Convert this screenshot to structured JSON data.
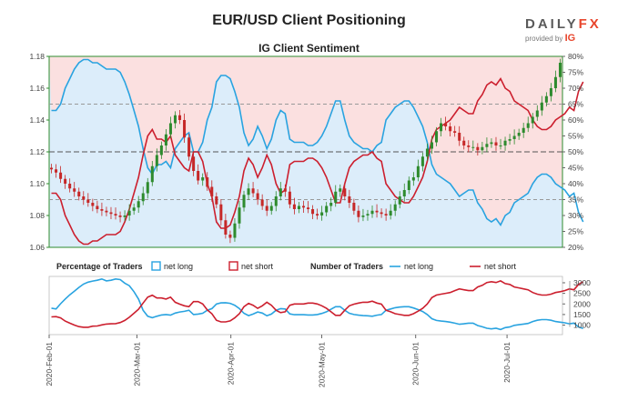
{
  "header": {
    "title": "EUR/USD Client Positioning",
    "subtitle": "IG Client Sentiment",
    "logo_main": "DAILYFX",
    "logo_sub_prefix": "provided by",
    "logo_sub_brand": "IG"
  },
  "colors": {
    "net_long": "#29a3e0",
    "net_short": "#cc1f2e",
    "bull_candle": "#2e8b2e",
    "bear_candle": "#c62828",
    "long_bg": "#dcedfa",
    "short_bg": "#fbe0e0"
  },
  "chart_data": [
    {
      "type": "candlestick",
      "title": "IG Client Sentiment",
      "price_axis": {
        "ticks": [
          "1.18",
          "1.16",
          "1.14",
          "1.12",
          "1.10",
          "1.08",
          "1.06"
        ],
        "ylim": [
          1.06,
          1.18
        ]
      },
      "percent_axis": {
        "ticks": [
          "80%",
          "75%",
          "70%",
          "65%",
          "60%",
          "55%",
          "50%",
          "45%",
          "40%",
          "35%",
          "30%",
          "25%",
          "20%"
        ],
        "ylim": [
          20,
          80
        ]
      },
      "price_close": [
        1.109,
        1.107,
        1.103,
        1.1,
        1.097,
        1.095,
        1.092,
        1.09,
        1.088,
        1.086,
        1.084,
        1.083,
        1.082,
        1.081,
        1.08,
        1.079,
        1.08,
        1.083,
        1.085,
        1.089,
        1.094,
        1.101,
        1.111,
        1.118,
        1.124,
        1.131,
        1.138,
        1.143,
        1.14,
        1.129,
        1.117,
        1.108,
        1.102,
        1.104,
        1.098,
        1.092,
        1.087,
        1.077,
        1.068,
        1.066,
        1.075,
        1.085,
        1.093,
        1.097,
        1.094,
        1.09,
        1.086,
        1.083,
        1.086,
        1.092,
        1.097,
        1.095,
        1.087,
        1.084,
        1.086,
        1.085,
        1.084,
        1.081,
        1.08,
        1.082,
        1.086,
        1.088,
        1.095,
        1.097,
        1.092,
        1.088,
        1.083,
        1.079,
        1.08,
        1.081,
        1.083,
        1.082,
        1.081,
        1.08,
        1.083,
        1.087,
        1.092,
        1.096,
        1.102,
        1.104,
        1.111,
        1.117,
        1.122,
        1.126,
        1.133,
        1.138,
        1.136,
        1.133,
        1.132,
        1.127,
        1.124,
        1.123,
        1.123,
        1.121,
        1.123,
        1.125,
        1.126,
        1.124,
        1.124,
        1.127,
        1.128,
        1.13,
        1.132,
        1.135,
        1.138,
        1.142,
        1.146,
        1.151,
        1.155,
        1.16,
        1.167,
        1.176
      ],
      "client_net_long_pct": [
        63,
        63,
        65,
        70,
        73,
        76,
        78,
        79,
        79,
        78,
        78,
        77,
        76,
        76,
        76,
        75,
        72,
        68,
        63,
        58,
        51,
        45,
        43,
        46,
        46,
        47,
        45,
        51,
        53,
        55,
        56,
        50,
        50,
        53,
        60,
        64,
        72,
        74,
        74,
        73,
        69,
        64,
        56,
        52,
        54,
        58,
        55,
        51,
        54,
        60,
        63,
        62,
        54,
        53,
        53,
        53,
        52,
        52,
        53,
        55,
        58,
        62,
        66,
        66,
        60,
        55,
        53,
        52,
        51,
        51,
        50,
        52,
        53,
        60,
        62,
        64,
        65,
        66,
        66,
        64,
        61,
        58,
        53,
        46,
        43,
        42,
        41,
        40,
        38,
        36,
        37,
        38,
        38,
        34,
        32,
        29,
        28,
        29,
        27,
        30,
        31,
        34,
        35,
        36,
        37,
        40,
        42,
        43,
        43,
        42,
        40,
        39,
        38,
        36,
        37,
        31,
        28
      ],
      "net_short_pct": [
        37,
        37,
        35,
        30,
        27,
        24,
        22,
        21,
        21,
        22,
        22,
        23,
        24,
        24,
        24,
        25,
        28,
        32,
        37,
        42,
        49,
        55,
        57,
        54,
        54,
        53,
        55,
        49,
        47,
        45,
        44,
        50,
        50,
        47,
        40,
        36,
        28,
        26,
        26,
        27,
        31,
        36,
        44,
        48,
        46,
        42,
        45,
        49,
        46,
        40,
        37,
        38,
        46,
        47,
        47,
        47,
        48,
        48,
        47,
        45,
        42,
        38,
        34,
        34,
        40,
        45,
        47,
        48,
        49,
        49,
        50,
        48,
        47,
        40,
        38,
        36,
        35,
        34,
        34,
        36,
        39,
        42,
        47,
        54,
        57,
        58,
        59,
        60,
        62,
        64,
        63,
        62,
        62,
        66,
        68,
        71,
        72,
        71,
        73,
        70,
        69,
        66,
        65,
        64,
        63,
        60,
        58,
        57,
        57,
        58,
        60,
        61,
        62,
        64,
        63,
        69,
        72
      ]
    },
    {
      "type": "line",
      "title": "Number of Traders",
      "x_ticks": [
        "2020-Feb-01",
        "2020-Mar-01",
        "2020-Apr-01",
        "2020-May-01",
        "2020-Jun-01",
        "2020-Jul-01"
      ],
      "y_ticks": [
        "3000",
        "2500",
        "2000",
        "1500",
        "1000"
      ],
      "ylim": [
        550,
        3300
      ],
      "series": [
        {
          "name": "net long",
          "values": [
            1800,
            1760,
            2010,
            2230,
            2430,
            2600,
            2780,
            2940,
            3030,
            3080,
            3120,
            3180,
            3090,
            3120,
            3180,
            3150,
            2980,
            2860,
            2580,
            2230,
            1700,
            1420,
            1350,
            1420,
            1480,
            1500,
            1470,
            1570,
            1620,
            1650,
            1700,
            1500,
            1520,
            1560,
            1700,
            1780,
            2000,
            2050,
            2060,
            2030,
            1940,
            1780,
            1560,
            1450,
            1520,
            1620,
            1570,
            1440,
            1520,
            1700,
            1780,
            1760,
            1530,
            1490,
            1490,
            1490,
            1480,
            1480,
            1500,
            1550,
            1630,
            1750,
            1870,
            1870,
            1700,
            1560,
            1500,
            1470,
            1450,
            1440,
            1420,
            1470,
            1500,
            1700,
            1760,
            1820,
            1850,
            1870,
            1870,
            1810,
            1730,
            1640,
            1500,
            1300,
            1220,
            1190,
            1170,
            1140,
            1090,
            1040,
            1060,
            1090,
            1090,
            980,
            920,
            850,
            820,
            850,
            790,
            880,
            910,
            990,
            1020,
            1050,
            1080,
            1170,
            1230,
            1260,
            1260,
            1230,
            1170,
            1140,
            1110,
            1060,
            1090,
            910,
            840
          ]
        },
        {
          "name": "net short",
          "values": [
            1390,
            1400,
            1340,
            1190,
            1090,
            1000,
            930,
            900,
            900,
            950,
            960,
            1010,
            1050,
            1060,
            1070,
            1120,
            1220,
            1370,
            1560,
            1750,
            2040,
            2320,
            2410,
            2280,
            2280,
            2230,
            2320,
            2080,
            1990,
            1910,
            1870,
            2110,
            2110,
            2000,
            1720,
            1540,
            1230,
            1150,
            1150,
            1200,
            1340,
            1540,
            1870,
            2030,
            1940,
            1790,
            1910,
            2080,
            1940,
            1700,
            1590,
            1630,
            1940,
            2000,
            2000,
            2000,
            2040,
            2040,
            2000,
            1910,
            1790,
            1630,
            1460,
            1460,
            1700,
            1910,
            1990,
            2040,
            2080,
            2080,
            2130,
            2040,
            1990,
            1700,
            1630,
            1540,
            1500,
            1460,
            1460,
            1540,
            1660,
            1790,
            2000,
            2300,
            2420,
            2460,
            2500,
            2540,
            2630,
            2710,
            2670,
            2630,
            2630,
            2800,
            2880,
            3010,
            3050,
            3010,
            3090,
            2960,
            2920,
            2800,
            2760,
            2710,
            2670,
            2540,
            2460,
            2420,
            2420,
            2460,
            2540,
            2580,
            2630,
            2710,
            2670,
            2920,
            3050
          ]
        }
      ]
    }
  ],
  "legend": {
    "pct_label": "Percentage of Traders",
    "pct_long": "net long",
    "pct_short": "net short",
    "num_label": "Number of Traders",
    "num_long": "net long",
    "num_short": "net short"
  }
}
